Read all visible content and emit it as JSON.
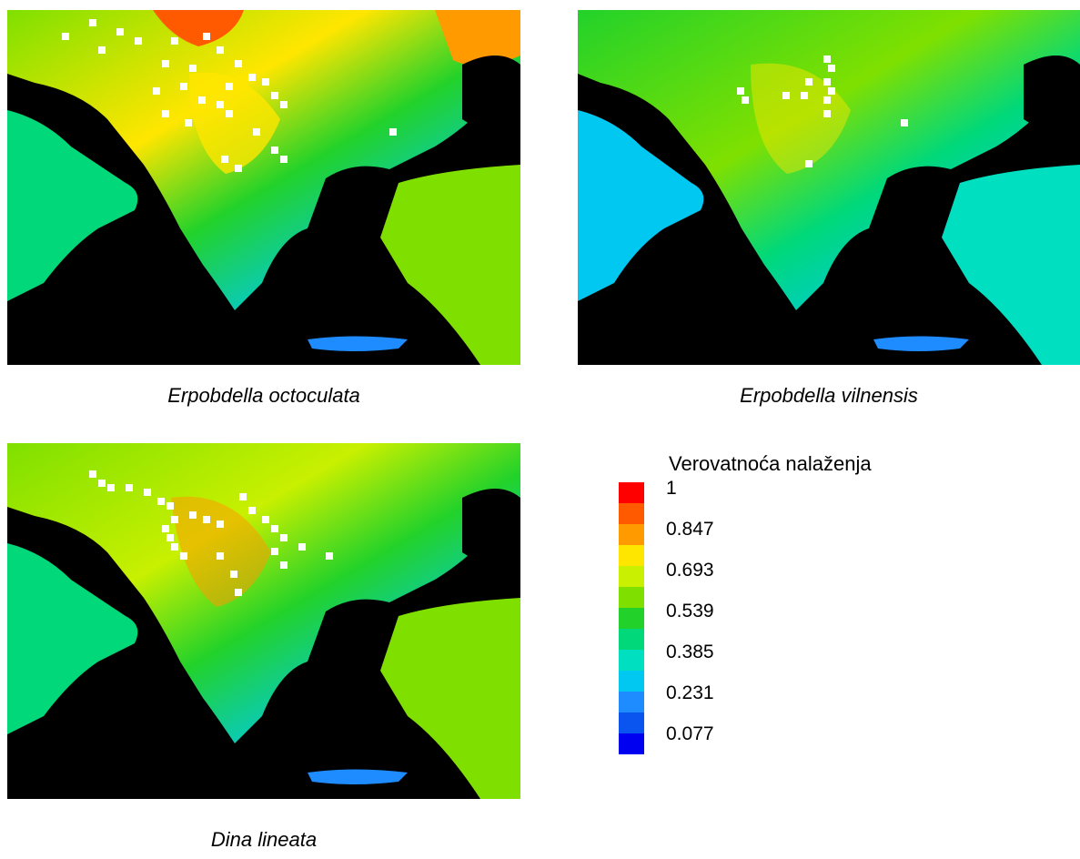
{
  "maps": [
    {
      "caption": "Erpobdella octoculata",
      "intensity": 0.72
    },
    {
      "caption": "Erpobdella vilnensis",
      "intensity": 0.45
    },
    {
      "caption": "Dina lineata",
      "intensity": 0.55
    }
  ],
  "legend": {
    "title": "Verovatnoća nalaženja",
    "tick_labels": [
      "1",
      "0.847",
      "0.693",
      "0.539",
      "0.385",
      "0.231",
      "0.077"
    ],
    "colors": [
      "#ff0000",
      "#ff5a00",
      "#ff9a00",
      "#ffe600",
      "#c8f000",
      "#7fe000",
      "#22d22a",
      "#00d87a",
      "#00e0c0",
      "#00c8f0",
      "#1e8cff",
      "#0a55f0",
      "#0000f0"
    ]
  }
}
